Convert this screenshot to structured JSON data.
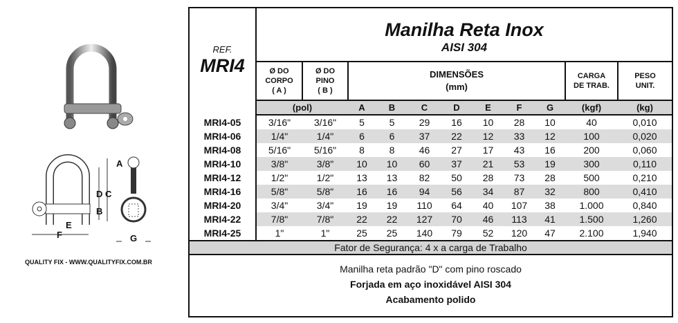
{
  "brand": "QUALITY FIX - WWW.QUALITYFIX.COM.BR",
  "diagram_labels": {
    "a": "A",
    "b": "B",
    "c": "C",
    "d": "D",
    "e": "E",
    "f": "F",
    "g": "G"
  },
  "title": "Manilha Reta Inox",
  "subtitle": "AISI 304",
  "ref_label": "REF.",
  "ref_value": "MRI4",
  "headers": {
    "corpo": [
      "Ø DO",
      "CORPO",
      "( A )"
    ],
    "pino": [
      "Ø DO",
      "PINO",
      "( B )"
    ],
    "dim": [
      "DIMENSÕES",
      "(mm)"
    ],
    "carga": [
      "CARGA",
      "DE TRAB."
    ],
    "peso": [
      "PESO",
      "UNIT."
    ]
  },
  "units": [
    "(pol)",
    "A",
    "B",
    "C",
    "D",
    "E",
    "F",
    "G",
    "(kgf)",
    "(kg)"
  ],
  "rows": [
    [
      "MRI4-05",
      "3/16\"",
      "3/16\"",
      "5",
      "5",
      "29",
      "16",
      "10",
      "28",
      "10",
      "40",
      "0,010"
    ],
    [
      "MRI4-06",
      "1/4\"",
      "1/4\"",
      "6",
      "6",
      "37",
      "22",
      "12",
      "33",
      "12",
      "100",
      "0,020"
    ],
    [
      "MRI4-08",
      "5/16\"",
      "5/16\"",
      "8",
      "8",
      "46",
      "27",
      "17",
      "43",
      "16",
      "200",
      "0,060"
    ],
    [
      "MRI4-10",
      "3/8\"",
      "3/8\"",
      "10",
      "10",
      "60",
      "37",
      "21",
      "53",
      "19",
      "300",
      "0,110"
    ],
    [
      "MRI4-12",
      "1/2\"",
      "1/2\"",
      "13",
      "13",
      "82",
      "50",
      "28",
      "73",
      "28",
      "500",
      "0,210"
    ],
    [
      "MRI4-16",
      "5/8\"",
      "5/8\"",
      "16",
      "16",
      "94",
      "56",
      "34",
      "87",
      "32",
      "800",
      "0,410"
    ],
    [
      "MRI4-20",
      "3/4\"",
      "3/4\"",
      "19",
      "19",
      "110",
      "64",
      "40",
      "107",
      "38",
      "1.000",
      "0,840"
    ],
    [
      "MRI4-22",
      "7/8\"",
      "7/8\"",
      "22",
      "22",
      "127",
      "70",
      "46",
      "113",
      "41",
      "1.500",
      "1,260"
    ],
    [
      "MRI4-25",
      "1\"",
      "1\"",
      "25",
      "25",
      "140",
      "79",
      "52",
      "120",
      "47",
      "2.100",
      "1,940"
    ]
  ],
  "safety": "Fator de Segurança: 4 x a carga de Trabalho",
  "description": [
    "Manilha reta padrão \"D\" com pino roscado",
    "Forjada em aço inoxidável AISI 304",
    "Acabamento polido"
  ]
}
